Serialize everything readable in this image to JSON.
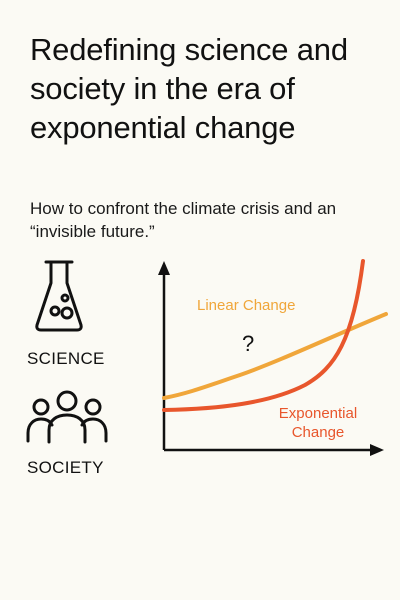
{
  "header": {
    "title": "Redefining science and society in the era of exponential change",
    "subtitle": "How to confront the climate crisis and an “invisible future.”"
  },
  "labels": {
    "science": "SCIENCE",
    "society": "SOCIETY"
  },
  "icons": {
    "science": "flask-icon",
    "society": "people-group-icon"
  },
  "chart": {
    "linear_label": "Linear Change",
    "exponential_label_line1": "Exponential",
    "exponential_label_line2": "Change",
    "question_mark": "?"
  },
  "colors": {
    "background": "#fbfaf4",
    "text": "#111111",
    "linear": "#f0a63a",
    "exponential": "#e8562c"
  }
}
